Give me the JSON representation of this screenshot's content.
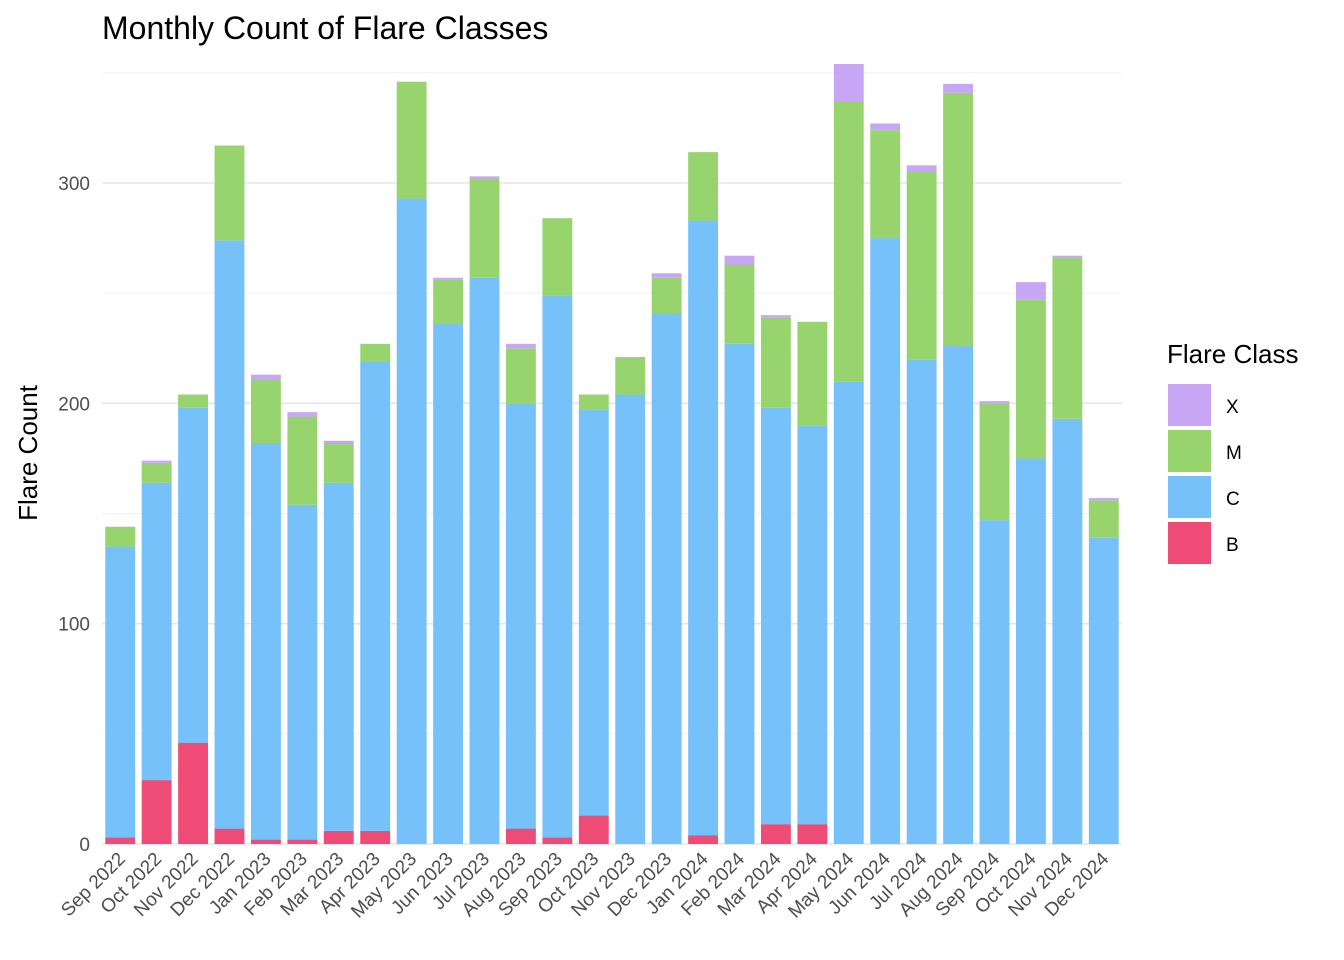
{
  "chart_data": {
    "type": "bar",
    "stacked": true,
    "title": "Monthly Count of Flare Classes",
    "xlabel": "",
    "ylabel": "Flare Count",
    "ylim": [
      0,
      355
    ],
    "y_ticks": [
      0,
      100,
      200,
      300
    ],
    "grid": true,
    "legend": {
      "title": "Flare Class",
      "placement": "right"
    },
    "categories": [
      "Sep 2022",
      "Oct 2022",
      "Nov 2022",
      "Dec 2022",
      "Jan 2023",
      "Feb 2023",
      "Mar 2023",
      "Apr 2023",
      "May 2023",
      "Jun 2023",
      "Jul 2023",
      "Aug 2023",
      "Sep 2023",
      "Oct 2023",
      "Nov 2023",
      "Dec 2023",
      "Jan 2024",
      "Feb 2024",
      "Mar 2024",
      "Apr 2024",
      "May 2024",
      "Jun 2024",
      "Jul 2024",
      "Aug 2024",
      "Sep 2024",
      "Oct 2024",
      "Nov 2024",
      "Dec 2024"
    ],
    "series": [
      {
        "name": "B",
        "color": "#EE4B77",
        "values": [
          3,
          29,
          46,
          7,
          2,
          2,
          6,
          6,
          0,
          0,
          0,
          7,
          3,
          13,
          0,
          0,
          4,
          0,
          9,
          9,
          0,
          0,
          0,
          0,
          0,
          0,
          0,
          0
        ]
      },
      {
        "name": "C",
        "color": "#76C1F9",
        "values": [
          132,
          135,
          152,
          267,
          180,
          152,
          158,
          213,
          293,
          236,
          257,
          193,
          246,
          184,
          204,
          241,
          279,
          227,
          189,
          181,
          210,
          275,
          220,
          226,
          147,
          175,
          193,
          139
        ]
      },
      {
        "name": "M",
        "color": "#97D46E",
        "values": [
          9,
          9,
          6,
          43,
          29,
          40,
          18,
          8,
          53,
          20,
          45,
          25,
          35,
          7,
          17,
          16,
          31,
          36,
          41,
          47,
          127,
          49,
          85,
          115,
          53,
          72,
          73,
          17
        ]
      },
      {
        "name": "X",
        "color": "#C7A6F5",
        "values": [
          0,
          1,
          0,
          0,
          2,
          2,
          1,
          0,
          0,
          1,
          1,
          2,
          0,
          0,
          0,
          2,
          0,
          4,
          1,
          0,
          17,
          3,
          3,
          4,
          1,
          8,
          1,
          1
        ]
      }
    ]
  }
}
